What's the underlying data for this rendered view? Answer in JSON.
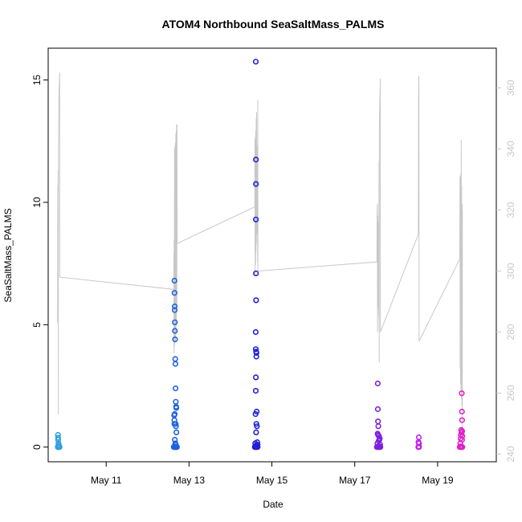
{
  "chart_data": {
    "type": "scatter",
    "title": "ATOM4 Northbound SeaSaltMass_PALMS",
    "xlabel": "Date",
    "ylabel": "SeaSaltMass_PALMS",
    "xlim": [
      "2018-05-09T14:24",
      "2018-05-20T10:00"
    ],
    "ylim": [
      -0.6,
      16.3
    ],
    "y_ticks": [
      0,
      5,
      10,
      15
    ],
    "x_ticks": [
      {
        "date": "2018-05-11",
        "label": "May 11"
      },
      {
        "date": "2018-05-13",
        "label": "May 13"
      },
      {
        "date": "2018-05-15",
        "label": "May 15"
      },
      {
        "date": "2018-05-17",
        "label": "May 17"
      },
      {
        "date": "2018-05-19",
        "label": "May 19"
      }
    ],
    "right_axis": {
      "ylim": [
        237.5,
        373
      ],
      "ticks": [
        240,
        260,
        280,
        300,
        320,
        340,
        360
      ],
      "color": "#c8c8c8"
    },
    "grid": false,
    "legend": "none",
    "track_series": {
      "axis": "right",
      "color": "#c8c8c8",
      "points": [
        [
          "2018-05-09T19:50",
          283
        ],
        [
          "2018-05-09T19:58",
          328
        ],
        [
          "2018-05-09T20:05",
          322
        ],
        [
          "2018-05-09T20:10",
          333
        ],
        [
          "2018-05-09T20:17",
          253
        ],
        [
          "2018-05-09T20:22",
          338
        ],
        [
          "2018-05-09T20:31",
          348
        ],
        [
          "2018-05-09T20:43",
          360
        ],
        [
          "2018-05-09T20:55",
          362
        ],
        [
          "2018-05-09T21:02",
          365
        ],
        [
          "2018-05-09T21:07",
          298
        ],
        [
          "2018-05-12T15:10",
          294
        ],
        [
          "2018-05-12T15:13",
          306
        ],
        [
          "2018-05-12T15:17",
          273
        ],
        [
          "2018-05-12T15:22",
          310
        ],
        [
          "2018-05-12T15:29",
          275
        ],
        [
          "2018-05-12T15:36",
          340
        ],
        [
          "2018-05-12T15:43",
          276
        ],
        [
          "2018-05-12T15:50",
          341
        ],
        [
          "2018-05-12T15:58",
          281
        ],
        [
          "2018-05-12T16:05",
          342
        ],
        [
          "2018-05-12T16:12",
          277
        ],
        [
          "2018-05-12T16:19",
          345
        ],
        [
          "2018-05-12T16:26",
          279
        ],
        [
          "2018-05-12T16:34",
          346
        ],
        [
          "2018-05-12T16:41",
          282
        ],
        [
          "2018-05-12T16:48",
          348
        ],
        [
          "2018-05-12T16:55",
          287
        ],
        [
          "2018-05-12T17:02",
          348
        ],
        [
          "2018-05-12T17:07",
          309
        ],
        [
          "2018-05-14T14:05",
          321
        ],
        [
          "2018-05-14T14:10",
          343
        ],
        [
          "2018-05-14T14:17",
          299
        ],
        [
          "2018-05-14T14:24",
          344
        ],
        [
          "2018-05-14T14:31",
          302
        ],
        [
          "2018-05-14T14:38",
          346
        ],
        [
          "2018-05-14T14:46",
          306
        ],
        [
          "2018-05-14T14:53",
          350
        ],
        [
          "2018-05-14T15:00",
          309
        ],
        [
          "2018-05-14T15:07",
          352
        ],
        [
          "2018-05-14T15:14",
          312
        ],
        [
          "2018-05-14T15:22",
          341
        ],
        [
          "2018-05-14T15:29",
          314
        ],
        [
          "2018-05-14T15:36",
          340
        ],
        [
          "2018-05-14T15:43",
          303
        ],
        [
          "2018-05-14T15:50",
          356
        ],
        [
          "2018-05-14T15:55",
          300
        ],
        [
          "2018-05-17T12:50",
          303
        ],
        [
          "2018-05-17T12:58",
          319
        ],
        [
          "2018-05-17T13:05",
          322
        ],
        [
          "2018-05-17T13:12",
          280
        ],
        [
          "2018-05-17T13:19",
          318
        ],
        [
          "2018-05-17T13:26",
          288
        ],
        [
          "2018-05-17T13:34",
          316
        ],
        [
          "2018-05-17T13:41",
          308
        ],
        [
          "2018-05-17T13:48",
          295
        ],
        [
          "2018-05-17T13:55",
          285
        ],
        [
          "2018-05-17T14:02",
          336
        ],
        [
          "2018-05-17T14:10",
          270
        ],
        [
          "2018-05-17T14:17",
          347
        ],
        [
          "2018-05-17T14:24",
          352
        ],
        [
          "2018-05-17T14:31",
          355
        ],
        [
          "2018-05-17T14:38",
          358
        ],
        [
          "2018-05-17T14:46",
          363
        ],
        [
          "2018-05-17T14:52",
          280
        ],
        [
          "2018-05-18T12:50",
          312
        ],
        [
          "2018-05-18T12:58",
          357
        ],
        [
          "2018-05-18T13:05",
          364
        ],
        [
          "2018-05-18T13:12",
          360
        ],
        [
          "2018-05-18T13:17",
          277
        ],
        [
          "2018-05-19T12:50",
          304
        ],
        [
          "2018-05-19T12:58",
          331
        ],
        [
          "2018-05-19T13:05",
          268
        ],
        [
          "2018-05-19T13:12",
          326
        ],
        [
          "2018-05-19T13:19",
          263
        ],
        [
          "2018-05-19T13:26",
          332
        ],
        [
          "2018-05-19T13:34",
          261
        ],
        [
          "2018-05-19T13:41",
          343
        ],
        [
          "2018-05-19T13:48",
          258
        ],
        [
          "2018-05-19T13:55",
          328
        ],
        [
          "2018-05-19T14:02",
          256
        ],
        [
          "2018-05-19T14:10",
          322
        ],
        [
          "2018-05-19T14:17",
          247
        ],
        [
          "2018-05-19T14:22",
          320
        ]
      ]
    },
    "series": [
      {
        "color": "#2e9fe0",
        "x": [
          "2018-05-09T20:00",
          "2018-05-09T20:05",
          "2018-05-09T20:10",
          "2018-05-09T20:15",
          "2018-05-09T20:20",
          "2018-05-09T20:25",
          "2018-05-09T20:30",
          "2018-05-09T20:40",
          "2018-05-09T20:50",
          "2018-05-09T21:00",
          "2018-05-09T20:05",
          "2018-05-09T20:07",
          "2018-05-09T20:09",
          "2018-05-09T20:20",
          "2018-05-09T20:35"
        ],
        "y": [
          0,
          0.02,
          0,
          0.03,
          0,
          0.01,
          0,
          0.02,
          0,
          0,
          0.5,
          0.38,
          0.3,
          0.15,
          0.08
        ]
      },
      {
        "color": "#1f62e0",
        "x": [
          "2018-05-12T15:10",
          "2018-05-12T15:20",
          "2018-05-12T15:30",
          "2018-05-12T15:40",
          "2018-05-12T15:50",
          "2018-05-12T16:00",
          "2018-05-12T16:10",
          "2018-05-12T16:20",
          "2018-05-12T16:30",
          "2018-05-12T16:40",
          "2018-05-12T16:50",
          "2018-05-12T17:00",
          "2018-05-12T15:32",
          "2018-05-12T15:35",
          "2018-05-12T15:40",
          "2018-05-12T15:43",
          "2018-05-12T15:47",
          "2018-05-12T15:50",
          "2018-05-12T15:55",
          "2018-05-12T16:00",
          "2018-05-12T16:05",
          "2018-05-12T16:10",
          "2018-05-12T16:20",
          "2018-05-12T16:30",
          "2018-05-12T15:25",
          "2018-05-12T15:28",
          "2018-05-12T15:30",
          "2018-05-12T15:40",
          "2018-05-12T16:15",
          "2018-05-12T16:25",
          "2018-05-12T16:35",
          "2018-05-12T16:40",
          "2018-05-12T15:45",
          "2018-05-12T16:05",
          "2018-05-12T16:15"
        ],
        "y": [
          0,
          0.02,
          0,
          0.03,
          0.01,
          0,
          0.02,
          0,
          0.01,
          0,
          0.02,
          0,
          6.8,
          6.3,
          5.6,
          5.75,
          5.1,
          4.75,
          4.4,
          3.6,
          3.4,
          2.4,
          1.85,
          1.65,
          1.3,
          1.1,
          0.95,
          1.35,
          0.95,
          0.85,
          1.6,
          0.6,
          0.3,
          0.15,
          0.1
        ]
      },
      {
        "color": "#2020d8",
        "x": [
          "2018-05-14T14:05",
          "2018-05-14T14:15",
          "2018-05-14T14:25",
          "2018-05-14T14:35",
          "2018-05-14T14:45",
          "2018-05-14T14:55",
          "2018-05-14T15:05",
          "2018-05-14T15:15",
          "2018-05-14T15:25",
          "2018-05-14T15:35",
          "2018-05-14T15:45",
          "2018-05-14T14:40",
          "2018-05-14T14:46",
          "2018-05-14T14:44",
          "2018-05-14T14:43",
          "2018-05-14T14:45",
          "2018-05-14T14:50",
          "2018-05-14T14:52",
          "2018-05-14T14:38",
          "2018-05-14T14:40",
          "2018-05-14T15:00",
          "2018-05-14T15:02",
          "2018-05-14T14:42",
          "2018-05-14T14:40",
          "2018-05-14T15:10",
          "2018-05-14T14:30",
          "2018-05-14T15:20",
          "2018-05-14T15:00",
          "2018-05-14T14:50",
          "2018-05-14T15:30",
          "2018-05-14T14:20",
          "2018-05-14T15:40"
        ],
        "y": [
          0,
          0.02,
          0,
          0.05,
          0.01,
          0,
          0.03,
          0,
          0.02,
          0,
          0.01,
          15.75,
          11.75,
          10.75,
          9.3,
          7.1,
          6.0,
          3.9,
          4.7,
          4.0,
          3.7,
          3.85,
          2.85,
          2.3,
          1.45,
          1.35,
          0.85,
          0.95,
          0.6,
          0.2,
          0.15,
          0.1
        ]
      },
      {
        "color": "#8020e0",
        "x": [
          "2018-05-17T12:50",
          "2018-05-17T13:05",
          "2018-05-17T13:20",
          "2018-05-17T13:35",
          "2018-05-17T13:50",
          "2018-05-17T14:05",
          "2018-05-17T14:20",
          "2018-05-17T14:35",
          "2018-05-17T14:50",
          "2018-05-17T13:20",
          "2018-05-17T13:22",
          "2018-05-17T13:28",
          "2018-05-17T13:40",
          "2018-05-17T13:15",
          "2018-05-17T13:30",
          "2018-05-17T14:00",
          "2018-05-17T14:15",
          "2018-05-17T14:30",
          "2018-05-17T13:50",
          "2018-05-17T13:10",
          "2018-05-17T14:40"
        ],
        "y": [
          0,
          0.02,
          0,
          0.03,
          0,
          0.01,
          0,
          0.02,
          0,
          2.6,
          1.55,
          1.05,
          0.85,
          0.55,
          0.5,
          0.45,
          0.3,
          0.35,
          0.25,
          0.15,
          0.1
        ]
      },
      {
        "color": "#c020e8",
        "x": [
          "2018-05-18T12:50",
          "2018-05-18T13:00",
          "2018-05-18T13:10",
          "2018-05-18T13:15",
          "2018-05-18T12:55",
          "2018-05-18T13:05",
          "2018-05-18T13:12"
        ],
        "y": [
          0,
          0.02,
          0,
          0.01,
          0.2,
          0.4,
          0.15
        ]
      },
      {
        "color": "#e020c8",
        "x": [
          "2018-05-19T12:50",
          "2018-05-19T13:05",
          "2018-05-19T13:20",
          "2018-05-19T13:35",
          "2018-05-19T13:50",
          "2018-05-19T14:05",
          "2018-05-19T14:20",
          "2018-05-19T14:00",
          "2018-05-19T14:05",
          "2018-05-19T14:10",
          "2018-05-19T13:40",
          "2018-05-19T13:50",
          "2018-05-19T14:15",
          "2018-05-19T13:30",
          "2018-05-19T14:20",
          "2018-05-19T13:20",
          "2018-05-19T14:10",
          "2018-05-19T13:10"
        ],
        "y": [
          0,
          0.02,
          0,
          0.03,
          0,
          0.01,
          0,
          2.2,
          1.45,
          1.1,
          0.7,
          0.6,
          0.65,
          0.5,
          0.45,
          0.35,
          0.3,
          0.15
        ]
      }
    ]
  }
}
